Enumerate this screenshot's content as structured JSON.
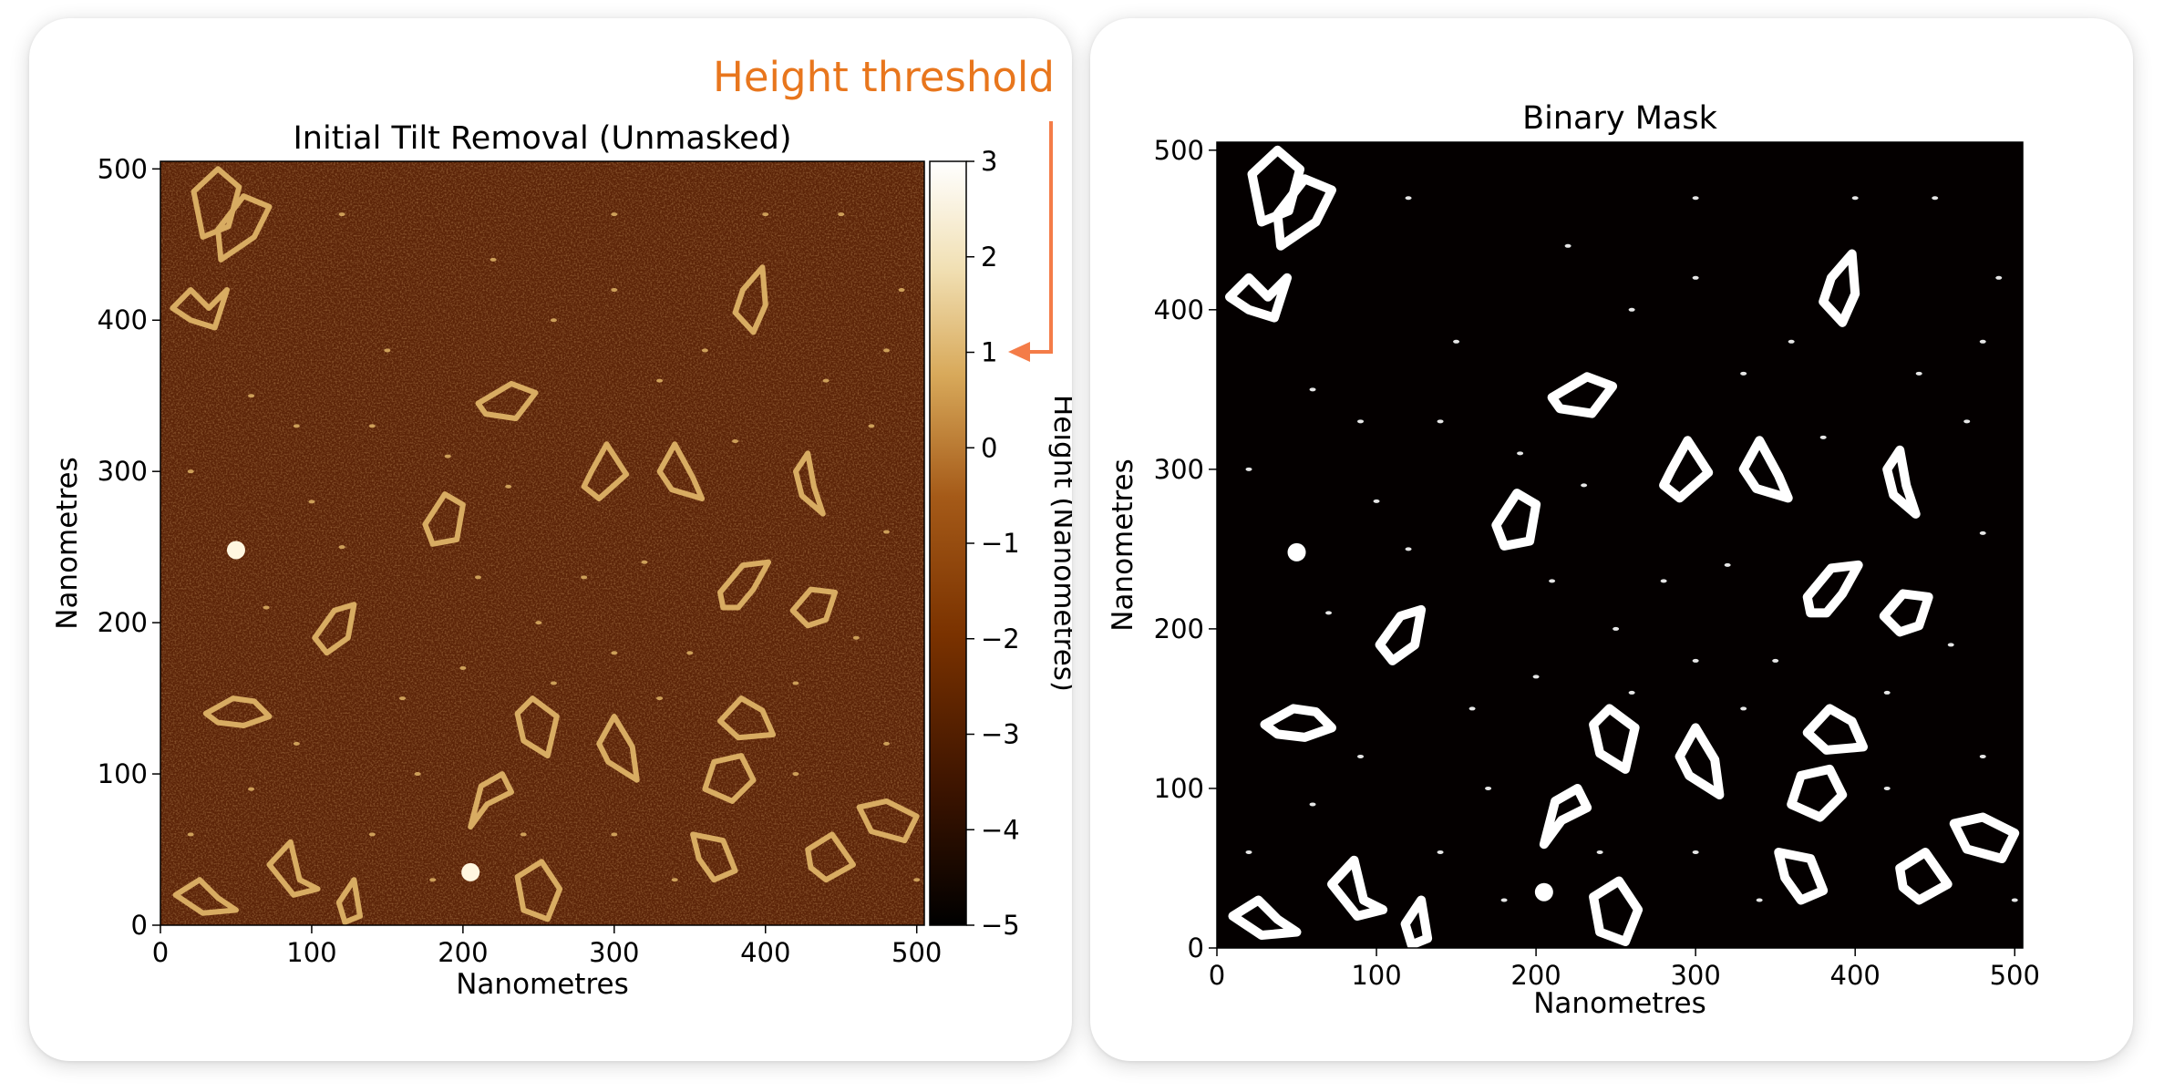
{
  "chart_data": [
    {
      "type": "heatmap",
      "title": "Initial Tilt Removal (Unmasked)",
      "xlabel": "Nanometres",
      "ylabel": "Nanometres",
      "xlim": [
        0,
        505
      ],
      "ylim": [
        0,
        505
      ],
      "xticks": [
        0,
        100,
        200,
        300,
        400,
        500
      ],
      "yticks": [
        0,
        100,
        200,
        300,
        400,
        500
      ],
      "colorbar": {
        "label": "Height (Nanometres)",
        "range": [
          -5,
          3
        ],
        "ticks": [
          "3",
          "2",
          "1",
          "0",
          "−1",
          "−2",
          "−3",
          "−4",
          "−5"
        ],
        "colors": [
          "#000000",
          "#3d1400",
          "#7a3200",
          "#a55a18",
          "#d8a95a",
          "#f1e0b4",
          "#ffffff"
        ]
      },
      "annotation": {
        "text": "Height threshold",
        "value": 1,
        "color": "#f47c48"
      },
      "background_color": "#5c2408",
      "feature_color": "#d8ac62"
    },
    {
      "type": "heatmap",
      "title": "Binary Mask",
      "xlabel": "Nanometres",
      "ylabel": "Nanometres",
      "xlim": [
        0,
        505
      ],
      "ylim": [
        0,
        505
      ],
      "xticks": [
        0,
        100,
        200,
        300,
        400,
        500
      ],
      "yticks": [
        0,
        100,
        200,
        300,
        400,
        500
      ],
      "background_color": "#040000",
      "feature_color": "#ffffff"
    }
  ]
}
